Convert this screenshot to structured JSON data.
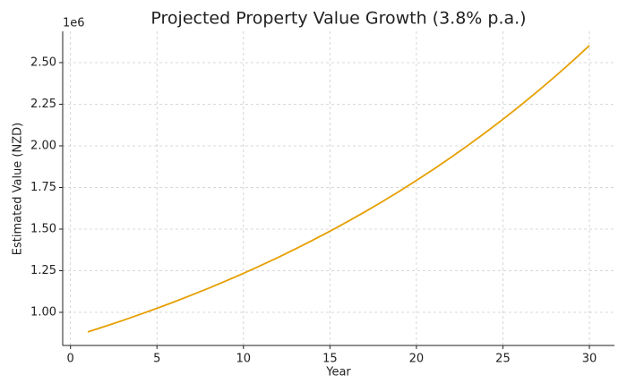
{
  "chart_data": {
    "type": "line",
    "title": "Projected Property Value Growth (3.8% p.a.)",
    "x_label": "Year",
    "y_label": "Estimated Value (NZD)",
    "y_offset_label": "1e6",
    "x": [
      1,
      2,
      3,
      4,
      5,
      6,
      7,
      8,
      9,
      10,
      11,
      12,
      13,
      14,
      15,
      16,
      17,
      18,
      19,
      20,
      21,
      22,
      23,
      24,
      25,
      26,
      27,
      28,
      29,
      30
    ],
    "series": [
      {
        "name": "Estimated Value",
        "color": "#e69f00",
        "values": [
          882300,
          915827,
          950629,
          986753,
          1024249,
          1063171,
          1103571,
          1145507,
          1189036,
          1234220,
          1281120,
          1329803,
          1380335,
          1432788,
          1487234,
          1543749,
          1602411,
          1663302,
          1726507,
          1792115,
          1860215,
          1930903,
          2004277,
          2080440,
          2159496,
          2241557,
          2326736,
          2415153,
          2506929,
          2602192
        ]
      }
    ],
    "xlim": [
      -0.45,
      31.45
    ],
    "xticks": [
      0,
      5,
      10,
      15,
      20,
      25,
      30
    ],
    "ylim": [
      801000,
      2688000
    ],
    "yticks": [
      {
        "value": 1000000,
        "label": "1.00"
      },
      {
        "value": 1250000,
        "label": "1.25"
      },
      {
        "value": 1500000,
        "label": "1.50"
      },
      {
        "value": 1750000,
        "label": "1.75"
      },
      {
        "value": 2000000,
        "label": "2.00"
      },
      {
        "value": 2250000,
        "label": "2.25"
      },
      {
        "value": 2500000,
        "label": "2.50"
      }
    ],
    "grid": true
  }
}
